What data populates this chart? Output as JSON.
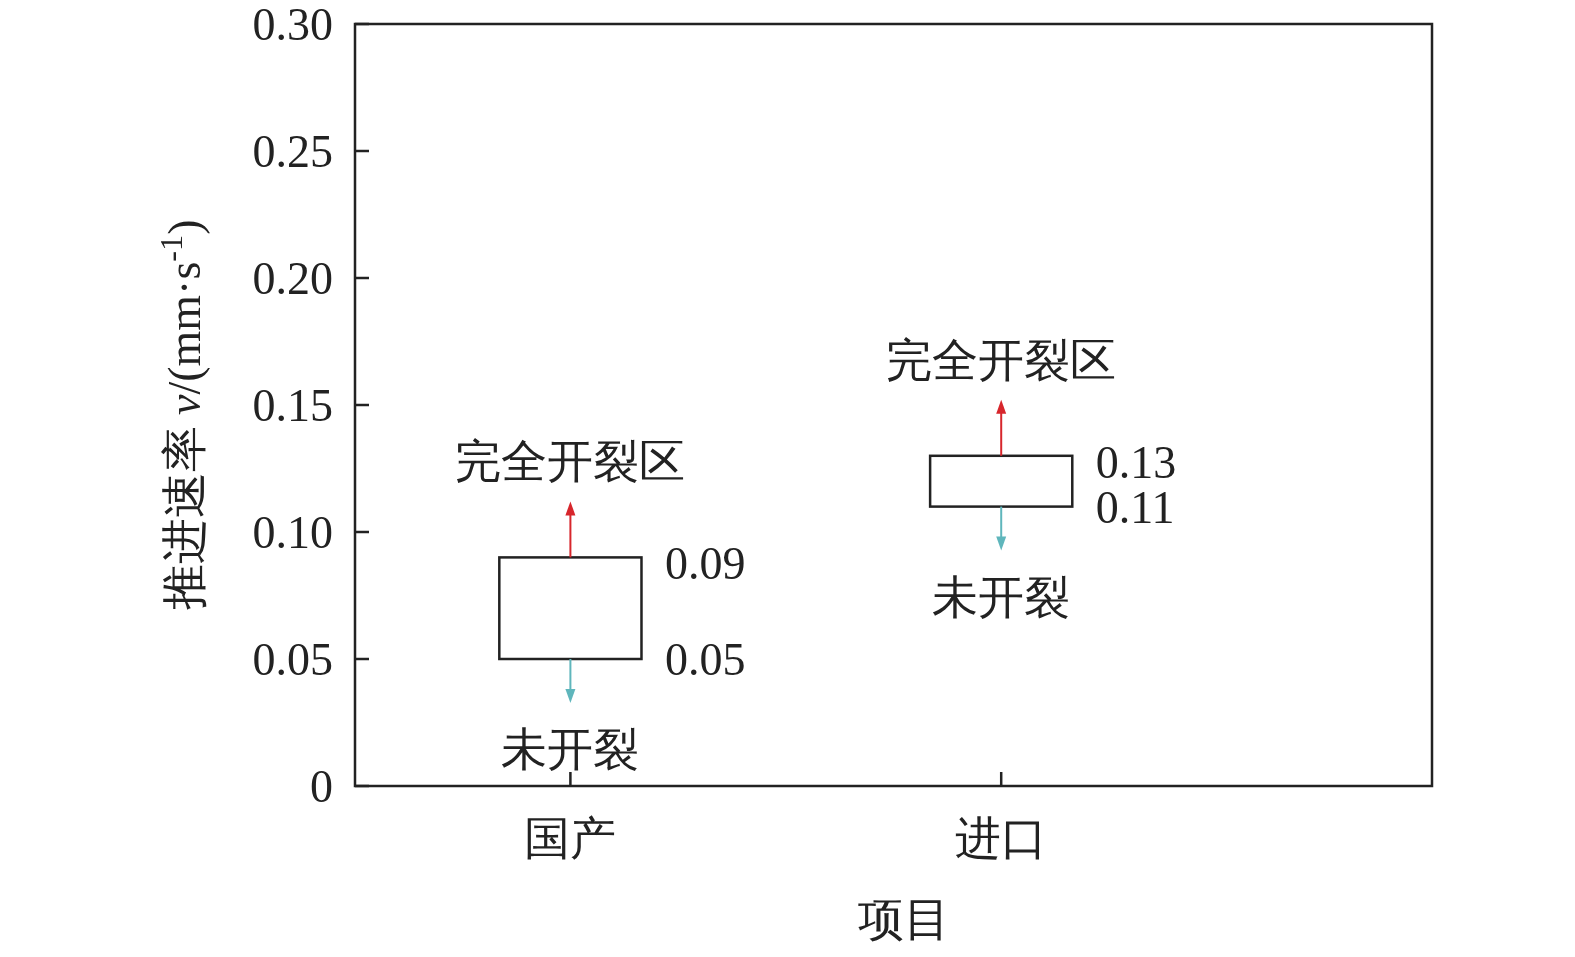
{
  "chart_data": {
    "type": "bar",
    "xlabel": "项目",
    "ylabel": "推进速率 *v*/(mm·s$^{-1}$)",
    "categories": [
      "国产",
      "进口"
    ],
    "values": [
      0.04,
      0.02
    ],
    "base": [
      0.05,
      0.11
    ],
    "color": "#ffffff",
    "ylim": [
      0,
      0.3
    ],
    "yticks": [
      0,
      0.05,
      {
        "value": 0.1,
        "label": "0.10"
      },
      0.15,
      {
        "value": 0.2,
        "label": "0.20"
      },
      0.25,
      {
        "value": 0.3,
        "label": "0.30"
      }
    ],
    "grid": false,
    "annotations": [
      {
        "text": "0.09",
        "x": "国产",
        "y": 0.09
      },
      {
        "text": "0.05",
        "x": "国产",
        "y": 0.05
      },
      {
        "text": "0.13",
        "x": "进口",
        "y": 0.13
      },
      {
        "text": "0.11",
        "x": "进口",
        "y": 0.11
      },
      {
        "text": "完全开裂区",
        "x": "国产",
        "y": 0.09
      },
      {
        "text": "未开裂",
        "x": "国产",
        "y": 0.05
      },
      {
        "text": "完全开裂区",
        "x": "进口",
        "y": 0.13
      },
      {
        "text": "未开裂",
        "x": "进口",
        "y": 0.11
      }
    ]
  }
}
